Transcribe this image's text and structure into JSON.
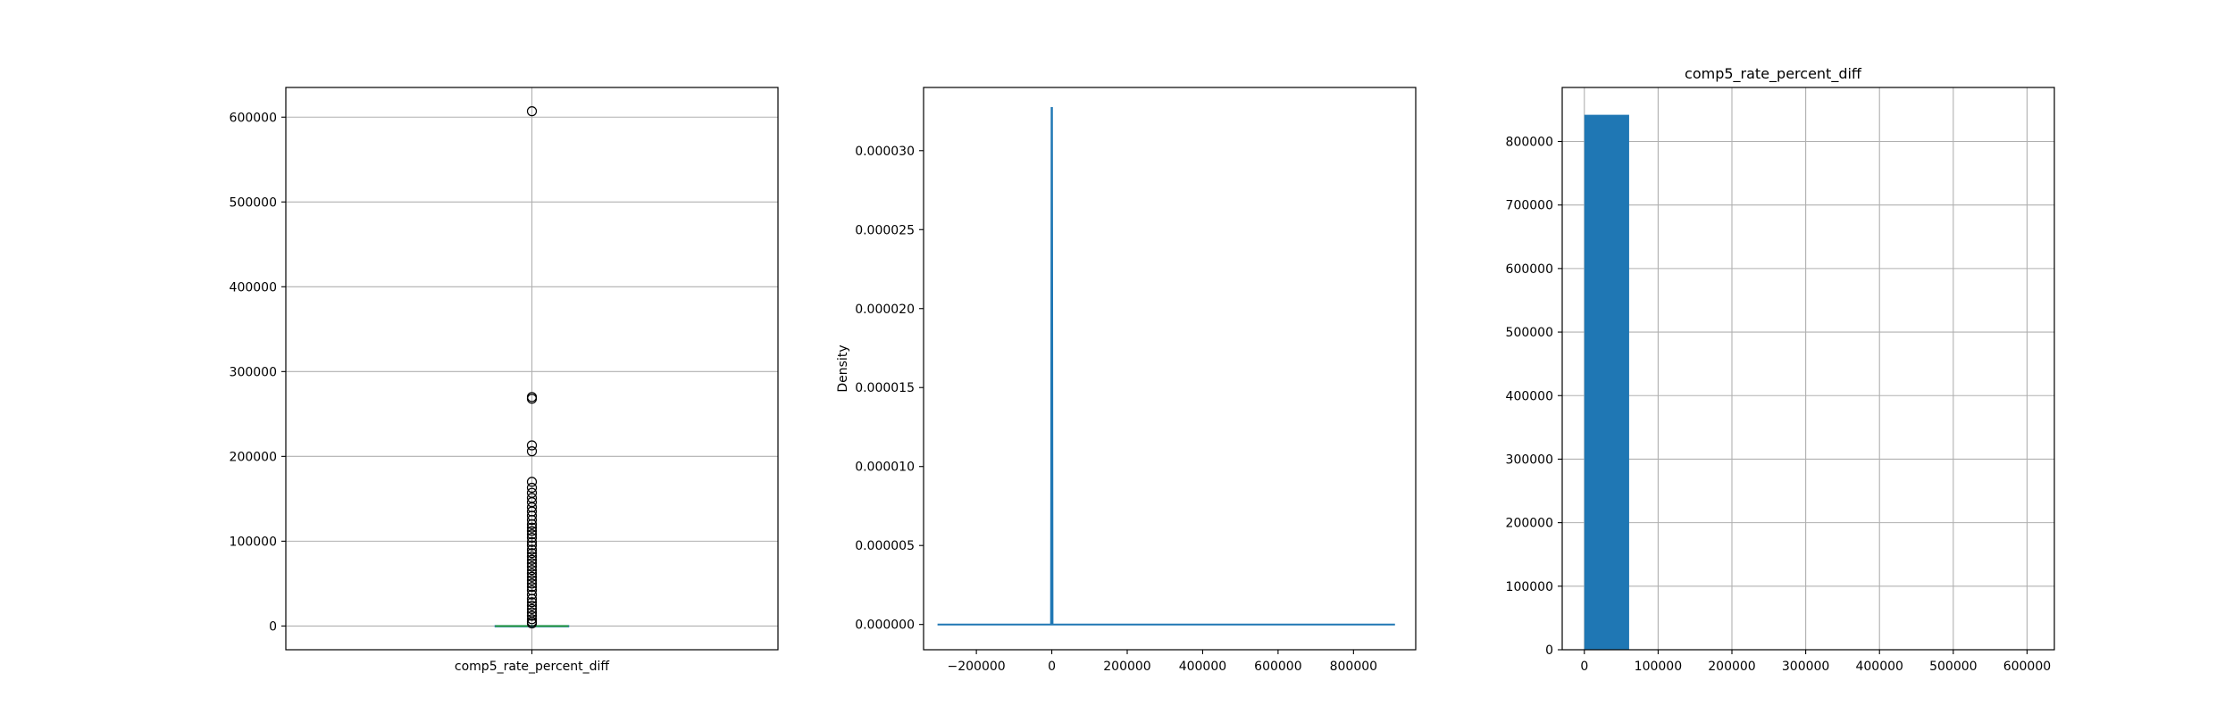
{
  "colors": {
    "primary": "#1f77b4",
    "median": "#2ca02c",
    "grid": "#b0b0b0",
    "frame": "#000000"
  },
  "chart_data": [
    {
      "type": "box",
      "title": "",
      "xlabel": "",
      "ylabel": "",
      "category": "comp5_rate_percent_diff",
      "ylim": [
        -28000,
        635000
      ],
      "yticks": [
        0,
        100000,
        200000,
        300000,
        400000,
        500000,
        600000
      ],
      "ytick_labels": [
        "0",
        "100000",
        "200000",
        "300000",
        "400000",
        "500000",
        "600000"
      ],
      "grid": true,
      "box": {
        "q1": -300,
        "median": 0,
        "q3": 300,
        "whisker_low": -1500,
        "whisker_high": 1500
      },
      "outliers": [
        607000,
        270000,
        268000,
        213000,
        206000,
        170000,
        163000,
        157000,
        151000,
        146000,
        140000,
        135000,
        130000,
        125000,
        120000,
        116000,
        112000,
        108000,
        104000,
        99000,
        95000,
        90000,
        86000,
        82000,
        78000,
        74000,
        70000,
        66000,
        62000,
        58000,
        54000,
        50000,
        46000,
        42000,
        37000,
        32000,
        28000,
        24000,
        20000,
        16000,
        12000,
        8000,
        5000,
        3000
      ]
    },
    {
      "type": "line",
      "title": "",
      "xlabel": "",
      "ylabel": "Density",
      "xlim": [
        -340000,
        965000
      ],
      "ylim": [
        -1.6e-06,
        3.4e-05
      ],
      "xticks": [
        -200000,
        0,
        200000,
        400000,
        600000,
        800000
      ],
      "xtick_labels": [
        "−200000",
        "0",
        "200000",
        "400000",
        "600000",
        "800000"
      ],
      "yticks": [
        0,
        5e-06,
        1e-05,
        1.5e-05,
        2e-05,
        2.5e-05,
        3e-05
      ],
      "ytick_labels": [
        "0.000000",
        "0.000005",
        "0.000010",
        "0.000015",
        "0.000020",
        "0.000025",
        "0.000030"
      ],
      "grid": false,
      "series": [
        {
          "x": [
            -303000,
            -2000,
            -500,
            0,
            500,
            2000,
            910000
          ],
          "y": [
            0,
            0,
            3.27e-05,
            3.27e-05,
            3.27e-05,
            0,
            0
          ]
        }
      ]
    },
    {
      "type": "bar",
      "title": "comp5_rate_percent_diff",
      "xlabel": "",
      "ylabel": "",
      "xlim": [
        -30000,
        637000
      ],
      "ylim": [
        0,
        885000
      ],
      "xticks": [
        0,
        100000,
        200000,
        300000,
        400000,
        500000,
        600000
      ],
      "xtick_labels": [
        "0",
        "100000",
        "200000",
        "300000",
        "400000",
        "500000",
        "600000"
      ],
      "yticks": [
        0,
        100000,
        200000,
        300000,
        400000,
        500000,
        600000,
        700000,
        800000
      ],
      "ytick_labels": [
        "0",
        "100000",
        "200000",
        "300000",
        "400000",
        "500000",
        "600000",
        "700000",
        "800000"
      ],
      "grid": true,
      "bins": [
        {
          "x0": 0,
          "x1": 60700,
          "count": 842000
        },
        {
          "x0": 60700,
          "x1": 121400,
          "count": 0
        },
        {
          "x0": 121400,
          "x1": 182100,
          "count": 0
        },
        {
          "x0": 182100,
          "x1": 242800,
          "count": 0
        },
        {
          "x0": 242800,
          "x1": 303500,
          "count": 0
        },
        {
          "x0": 303500,
          "x1": 364200,
          "count": 0
        },
        {
          "x0": 364200,
          "x1": 424900,
          "count": 0
        },
        {
          "x0": 424900,
          "x1": 485600,
          "count": 0
        },
        {
          "x0": 485600,
          "x1": 546300,
          "count": 0
        },
        {
          "x0": 546300,
          "x1": 607000,
          "count": 0
        }
      ]
    }
  ]
}
